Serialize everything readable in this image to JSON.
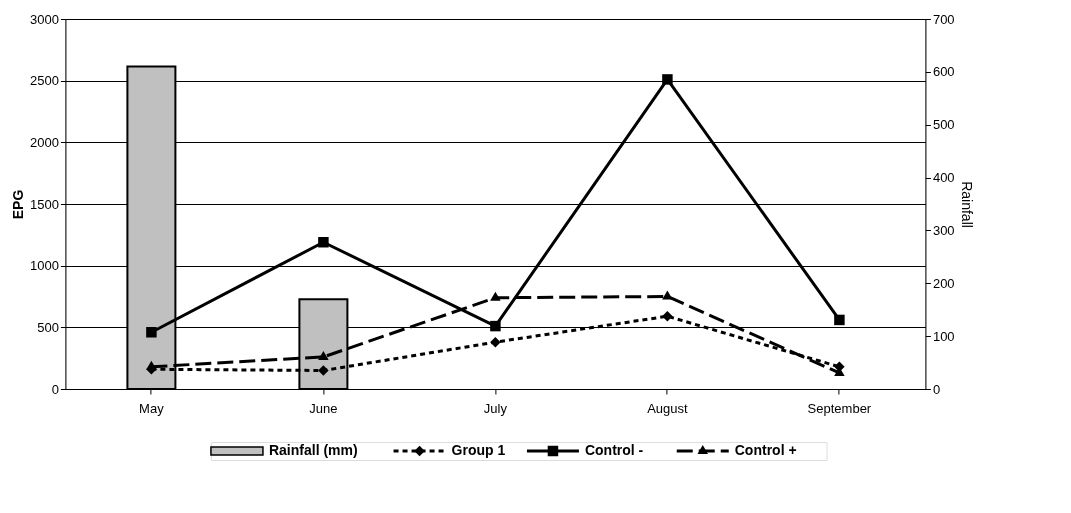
{
  "chart_data": {
    "type": "line",
    "ylabel": "EPG",
    "y2label": "Rainfall",
    "categories": [
      "May",
      "June",
      "July",
      "August",
      "September"
    ],
    "series": [
      {
        "name": "Rainfall (mm)",
        "type": "bar",
        "axis": "y2",
        "color": "#c0c0c0",
        "values": [
          610,
          170,
          null,
          null,
          null
        ]
      },
      {
        "name": "Group 1",
        "color": "#000000",
        "line_style": "dotted",
        "marker": "diamond",
        "values": [
          160,
          150,
          380,
          590,
          180
        ]
      },
      {
        "name": "Control -",
        "color": "#000000",
        "line_style": "solid",
        "marker": "square",
        "values": [
          460,
          1190,
          510,
          2510,
          560
        ]
      },
      {
        "name": "Control +",
        "color": "#000000",
        "line_style": "dashed",
        "marker": "triangle",
        "values": [
          180,
          260,
          740,
          750,
          130
        ]
      }
    ],
    "ylim": [
      0,
      3000
    ],
    "yticks": [
      0,
      500,
      1000,
      1500,
      2000,
      2500,
      3000
    ],
    "y2lim": [
      0,
      700
    ],
    "y2ticks": [
      0,
      100,
      200,
      300,
      400,
      500,
      600,
      700
    ],
    "grid": "y",
    "legend": "bottom"
  }
}
